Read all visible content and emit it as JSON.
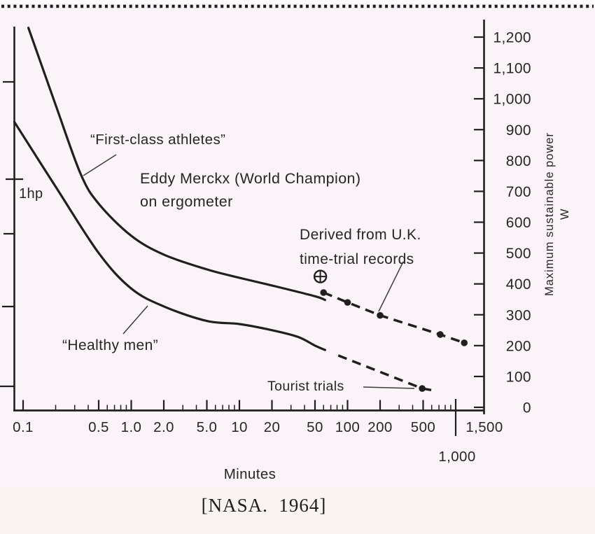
{
  "page": {
    "citation": "[NASA.  1964]"
  },
  "chart_data": {
    "type": "line",
    "title": "",
    "xlabel": "Minutes",
    "ylabel": "Maximum sustainable power",
    "ylabel_unit": "W",
    "grid": false,
    "legend": "none (series labelled by on-chart annotations)",
    "x_axis": {
      "scale": "log",
      "range": [
        0.08,
        1500
      ],
      "ticks": [
        {
          "v": 0.1,
          "label": "0.1"
        },
        {
          "v": 0.5,
          "label": "0.5"
        },
        {
          "v": 1,
          "label": "1.0"
        },
        {
          "v": 2,
          "label": "2.0"
        },
        {
          "v": 5,
          "label": "5.0"
        },
        {
          "v": 10,
          "label": "10"
        },
        {
          "v": 20,
          "label": "20"
        },
        {
          "v": 50,
          "label": "50"
        },
        {
          "v": 100,
          "label": "100"
        },
        {
          "v": 200,
          "label": "200"
        },
        {
          "v": 500,
          "label": "500"
        },
        {
          "v": 1000,
          "label": "1,000"
        },
        {
          "v": 1500,
          "label": "1,500"
        }
      ]
    },
    "y_axis": {
      "scale": "linear",
      "side": "right",
      "range": [
        0,
        1250
      ],
      "ticks": [
        {
          "v": 1200,
          "label": "1,200"
        },
        {
          "v": 1100,
          "label": "1,100"
        },
        {
          "v": 1000,
          "label": "1,000"
        },
        {
          "v": 900,
          "label": "900"
        },
        {
          "v": 800,
          "label": "800"
        },
        {
          "v": 700,
          "label": "700"
        },
        {
          "v": 600,
          "label": "600"
        },
        {
          "v": 500,
          "label": "500"
        },
        {
          "v": 400,
          "label": "400"
        },
        {
          "v": 300,
          "label": "300"
        },
        {
          "v": 200,
          "label": "200"
        },
        {
          "v": 100,
          "label": "100"
        },
        {
          "v": 0,
          "label": "0"
        }
      ]
    },
    "series": [
      {
        "name": "“First-class athletes”",
        "line": "solid",
        "marker": "none",
        "points": [
          [
            0.112,
            1230
          ],
          [
            0.2,
            980
          ],
          [
            0.34,
            757
          ],
          [
            0.5,
            660
          ],
          [
            1,
            556
          ],
          [
            2,
            495
          ],
          [
            5,
            447
          ],
          [
            10,
            420
          ],
          [
            20,
            395
          ],
          [
            50,
            360
          ],
          [
            62,
            348
          ]
        ]
      },
      {
        "name": "“Healthy men”",
        "line": "solid",
        "marker": "none",
        "points": [
          [
            0.083,
            925
          ],
          [
            0.2,
            715
          ],
          [
            0.5,
            500
          ],
          [
            1,
            385
          ],
          [
            2,
            327
          ],
          [
            5,
            280
          ],
          [
            10,
            270
          ],
          [
            20,
            250
          ],
          [
            35,
            228
          ],
          [
            50,
            200
          ],
          [
            62,
            186
          ]
        ]
      },
      {
        "name": "Derived from U.K. time-trial records",
        "line": "dashed",
        "marker": "dot",
        "points": [
          [
            60,
            372
          ],
          [
            100,
            340
          ],
          [
            200,
            298
          ],
          [
            720,
            236
          ],
          [
            1200,
            209
          ]
        ]
      },
      {
        "name": "Tourist trials",
        "line": "dashed",
        "marker": "dot",
        "marker_indices": [
          1
        ],
        "points": [
          [
            82,
            168
          ],
          [
            490,
            61
          ],
          [
            640,
            54
          ]
        ]
      },
      {
        "name": "Eddy Merckx (World Champion) on ergometer",
        "line": "none",
        "marker": "circle-plus",
        "points": [
          [
            56,
            424
          ]
        ]
      }
    ],
    "annotations": [
      {
        "id": "first-class-label",
        "lines": [
          "“First-class athletes”"
        ]
      },
      {
        "id": "merckx-label",
        "lines": [
          "Eddy Merckx (World Champion)",
          "on ergometer"
        ]
      },
      {
        "id": "one-hp-label",
        "lines": [
          "1hp"
        ]
      },
      {
        "id": "uk-label",
        "lines": [
          "Derived from U.K.",
          "time-trial records"
        ]
      },
      {
        "id": "healthy-label",
        "lines": [
          "“Healthy men”"
        ]
      },
      {
        "id": "tourist-label",
        "lines": [
          "Tourist trials"
        ]
      }
    ]
  },
  "colors": {
    "ink": "#1f1f1f",
    "text": "#262626",
    "paper": "#faf4f8"
  }
}
